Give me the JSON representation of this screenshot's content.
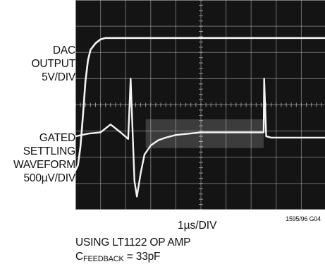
{
  "labels": {
    "top_trace": [
      "DAC",
      "OUTPUT",
      "5V/DIV"
    ],
    "bottom_trace": [
      "GATED",
      "SETTLING",
      "WAVEFORM",
      "500µV/DIV"
    ]
  },
  "time_scale": "1µs/DIV",
  "figure_code": "1595/96 G04",
  "notes": {
    "line1": "USING LT1122 OP AMP",
    "cap_symbol": "C",
    "cap_subscript": "FEEDBACK",
    "cap_value": " = 33pF"
  },
  "colors": {
    "screen": "#141414",
    "grid": "#b8b8b8",
    "trace": "#f4f4f4"
  },
  "chart_data": {
    "type": "line",
    "title": "",
    "xlabel": "1µs/DIV",
    "grid": true,
    "divisions": {
      "x": 10,
      "y": 8
    },
    "series": [
      {
        "name": "DAC OUTPUT",
        "units": "divisions",
        "x": [
          0,
          0.1,
          0.2,
          0.3,
          0.4,
          0.5,
          0.6,
          0.8,
          1.0,
          1.2,
          10
        ],
        "y": [
          -2.5,
          -2.3,
          -1.6,
          -0.4,
          0.9,
          1.7,
          2.1,
          2.35,
          2.5,
          2.55,
          2.55
        ]
      },
      {
        "name": "GATED SETTLING WAVEFORM",
        "units": "divisions",
        "x": [
          0,
          0.5,
          1.0,
          1.4,
          1.8,
          2.1,
          2.2,
          2.35,
          2.45,
          2.6,
          2.75,
          3.0,
          3.3,
          3.6,
          4.0,
          5.0,
          6.0,
          7.0,
          7.5,
          7.52,
          7.6,
          7.8,
          8.0,
          10
        ],
        "y": [
          -1.2,
          -1.1,
          -1.05,
          -0.75,
          -1.05,
          -1.3,
          1.0,
          -2.9,
          -3.5,
          -2.6,
          -1.9,
          -1.55,
          -1.35,
          -1.25,
          -1.15,
          -1.05,
          -1.05,
          -1.05,
          -1.05,
          1.0,
          -1.2,
          -1.25,
          -1.25,
          -1.25
        ]
      }
    ]
  }
}
